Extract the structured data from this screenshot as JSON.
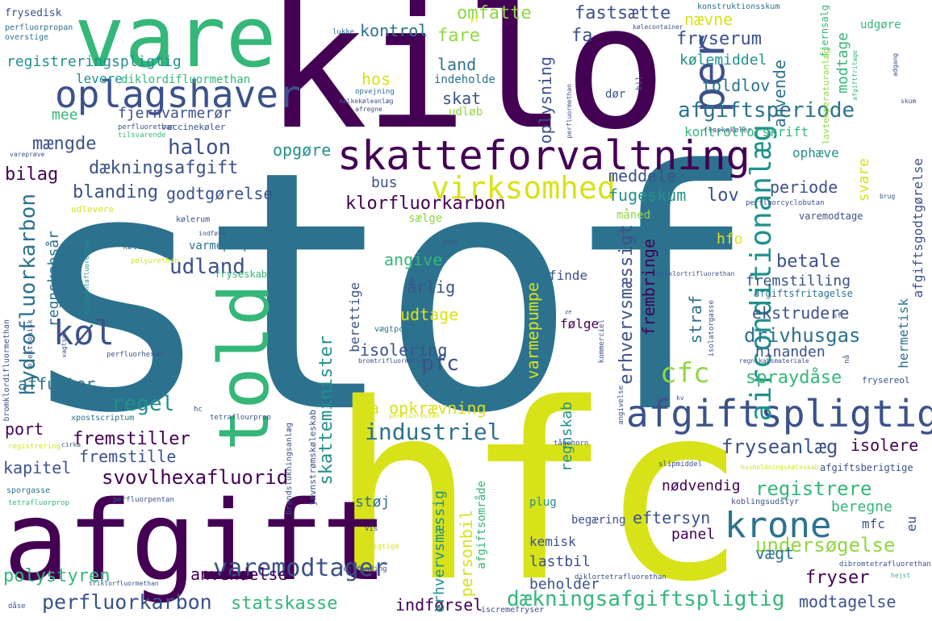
{
  "palette": {
    "dark_purple": "#440154",
    "indigo": "#3b528b",
    "teal": "#2c728e",
    "green_teal": "#21918c",
    "green": "#35b779",
    "lime": "#90d743",
    "yellow": "#d8e219",
    "background": "#ffffff"
  },
  "words": {
    "stof": "stof",
    "kilo": "kilo",
    "hfc": "hfc",
    "afgift": "afgift",
    "vare": "vare",
    "told": "told",
    "skatteforvaltning": "skatteforvaltning",
    "afgiftspligtig": "afgiftspligtig",
    "oplagshaver": "oplagshaver",
    "krone": "krone",
    "per": "per",
    "virksomhed": "virksomhed",
    "airconditionanlaeg": "airconditionanlæg",
    "cfc": "cfc",
    "hydrofluorkarbon": "hydrofluorkarbon",
    "kol": "køl",
    "varemodtager": "varemodtager",
    "perfluorkarbon": "perfluorkarbon",
    "daekningsafgiftspligtig": "dækningsafgiftspligtig",
    "svovlhexafluorid": "svovlhexafluorid",
    "fryseanlaeg": "fryseanlæg",
    "undersogelse": "undersøgelse",
    "registrere": "registrere",
    "afgiftsperiode": "afgiftsperiode",
    "skatteminister": "skatteminister",
    "daekningsafgift": "dækningsafgift",
    "halon": "halon",
    "udland": "udland",
    "industriel": "industriel",
    "pfc": "pfc",
    "regel": "regel",
    "fremstiller": "fremstiller",
    "fremstille": "fremstille",
    "blanding": "blanding",
    "mangde": "mængde",
    "omfatte": "omfatte",
    "fastsaette": "fastsætte",
    "fare": "fare",
    "kontrol": "kontrol",
    "land": "land",
    "indeholde": "indeholde",
    "hos": "hos",
    "skat": "skat",
    "udlob": "udløb",
    "oplysning": "oplysning",
    "naevne": "nævne",
    "fa": "fa",
    "fryserum": "fryserum",
    "anvende": "anvende",
    "kolemiddel": "kølemiddel",
    "modtage": "modtage",
    "toldlov": "toldlov",
    "registreringspligtig": "registreringspligtig",
    "levere": "levere",
    "diklordifluormethan": "diklordifluormethan",
    "mee": "mee",
    "fjernvarmeror": "fjernvarmerør",
    "vaccinekoler": "vaccinekøler",
    "perfluorethan": "perfluorethan",
    "tilsvarende": "tilsvarende",
    "opgore": "opgøre",
    "bus": "bus",
    "klorfluorkarbon": "klorfluorkarbon",
    "saelge": "sælge",
    "godtgorelse": "godtgørelse",
    "bilag": "bilag",
    "meddele": "meddele",
    "fugeskum": "fugeskum",
    "maned": "måned",
    "lov": "lov",
    "periode": "periode",
    "varemodtage": "varemodtage",
    "erhvervsmassigt": "erhvervsmæssigt",
    "fembringe": "frembringe",
    "hfo": "hfo",
    "betale": "betale",
    "fremstilling": "fremstilling",
    "afgiftsfritagelse": "afgiftsfritagelse",
    "angive": "angive",
    "arlig": "årlig",
    "finde": "finde",
    "udtage": "udtage",
    "varmepumpe": "varmepumpe",
    "berettige": "berettige",
    "folge": "følge",
    "isolering": "isolering",
    "straf": "straf",
    "ekstrudere": "ekstrudere",
    "hinanden": "hinanden",
    "drivhusgas": "drivhusgas",
    "spraydase": "spraydåse",
    "hermetisk": "hermetisk",
    "ophaeve": "ophæve",
    "svare": "svare",
    "kontrolforskrift": "kontrolforskrift",
    "afgiftsgodtgorelse": "afgiftsgodtgørelse",
    "regnskabsar": "regnskabsår",
    "varmepumpebasere": "varmepumpebasere",
    "fryseskab": "fryseskab",
    "affugter": "affugter",
    "port": "port",
    "kapitel": "kapitel",
    "polystyren": "polystyren",
    "anvendelse": "anvendelse",
    "statskasse": "statskasse",
    "indforsel": "indførsel",
    "modtagelse": "modtagelse",
    "fryser": "fryser",
    "vaegt": "vægt",
    "mfc": "mfc",
    "eu": "eu",
    "beregne": "beregne",
    "eftersyn": "eftersyn",
    "panel": "panel",
    "noedvendig": "nødvendig",
    "isolere": "isolere",
    "afgiftsberigtige": "afgiftsberigtige",
    "ea_opkraevning": "ea opkrævning",
    "regnskab": "regnskab",
    "personbil": "personbil",
    "erhvervsmaessig": "erhvervsmæssig",
    "afgiftsomraade": "afgiftsområde",
    "stoj": "støj",
    "lastbil": "lastbil",
    "beholder": "beholder",
    "kemisk": "kemisk",
    "begaering": "begæring",
    "plug": "plug",
    "frysedisk": "frysedisk",
    "perfluorpropan": "perfluorpropan",
    "overstige": "overstige",
    "vareprove": "vareprøve",
    "udlevere": "udlevere",
    "perfluorcyclobutan": "perfluorcyclobutan",
    "konstruktionsskum": "konstruktionsskum",
    "fjernsalg": "fjernsalg",
    "lavtemperaturanlaeg": "lavtemperaturanlæg",
    "triklortrifluorethan": "triklortrifluorethan",
    "flaskekoler": "flaskekøler",
    "brug": "brug",
    "skum": "skum",
    "bromklordifluormethan": "bromklordifluormethan",
    "elektronisk": "elektronisk",
    "klorpentafluorethan": "klorpentafluorethan",
    "perfluorhexan": "perfluorhexan",
    "kolerum": "kølerum",
    "koleanlaeg": "køleanlæg",
    "polyurethan": "polyurethan",
    "xpostscriptum": "xpostscriptum",
    "tetraflourprop": "tetraflourprop",
    "perfluorbutan": "perfluorbutan",
    "brandslukningsanlaeg": "brandslukningsanlæg",
    "bromtrifluormethan": "bromtrifluormethan",
    "jaevnstromskoleskab": "jævnstrømskøleskab",
    "registrering": "registrering",
    "cirka": "cirka",
    "sporgasse": "sporgasse",
    "tetrafluorprop": "tetrafluorprop",
    "perfluorpentan": "perfluorpentan",
    "vis": "vis",
    "berigtige": "berigtige",
    "fejlfinding": "fejlfinding",
    "triklorfluormethan": "triklorfluormethan",
    "diklortetrafluorethan": "diklortetrafluorethan",
    "dibromtetrafluorethan": "dibromtetrafluorethan",
    "dase": "dåse",
    "iscremefryser": "iscremefryser",
    "hejst": "hejst",
    "taagehorn": "tågehorn",
    "slipmiddel": "slipmiddel",
    "husholdningskoleskab": "husholdningskøleskab",
    "koblingsudstyr": "koblingsudstyr",
    "frysereol": "frysereol",
    "angivelse": "angivelse",
    "kommerciel": "kommerciel",
    "isolatorgasse": "isolatorgasse",
    "regnskabsmateriale": "regnskabsmateriale",
    "opvejning": "opvejning",
    "maelkekoleanlaeg": "mælkekøleanlæg",
    "afregne": "afregne",
    "dor": "dør",
    "bil": "bil",
    "yf": "yf",
    "lukke": "lukke",
    "kolecontainer": "kølecontainer",
    "afgiftfritage": "afgiftfritage",
    "indfore": "indføre",
    "bode": "bøde",
    "vaegtpct": "vægtpct",
    "hc": "hc",
    "kv": "kv",
    "sf": "sf",
    "na": "nå",
    "ze": "ze",
    "udgore": "udgøre",
    "adgang": "adgang",
    "perfluormethan": "perfluormethan",
    "vagtsom": "vagtsom"
  }
}
